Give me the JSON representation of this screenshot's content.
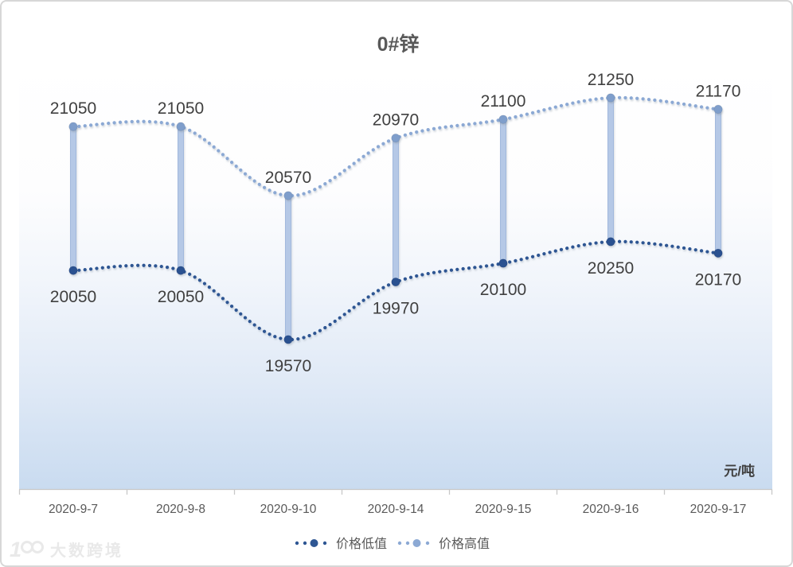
{
  "chart": {
    "watermark": "大数跨境"
  },
  "chart_data": {
    "type": "line",
    "title": "0#锌",
    "unit_label": "元/吨",
    "categories": [
      "2020-9-7",
      "2020-9-8",
      "2020-9-10",
      "2020-9-14",
      "2020-9-15",
      "2020-9-16",
      "2020-9-17"
    ],
    "series": [
      {
        "name": "价格低值",
        "values": [
          20050,
          20050,
          19570,
          19970,
          20100,
          20250,
          20170
        ],
        "color": "#2e5693",
        "marker_color": "#2b5190",
        "label_position": "below"
      },
      {
        "name": "价格高值",
        "values": [
          21050,
          21050,
          20570,
          20970,
          21100,
          21250,
          21170
        ],
        "color": "#8ca9d4",
        "marker_color": "#7f9ecb",
        "label_position": "above"
      }
    ],
    "hilo_bars": {
      "fill": "#b5c8e6",
      "border": "#a2b9dd"
    },
    "line_style": "dotted-smooth",
    "grid": false,
    "legend_position": "bottom",
    "background_gradient": [
      "#ffffff",
      "#c9dbf0"
    ],
    "data_label_color": "#404040",
    "axis_label_color": "#595959",
    "axis_line_color": "#c8c8c8"
  }
}
